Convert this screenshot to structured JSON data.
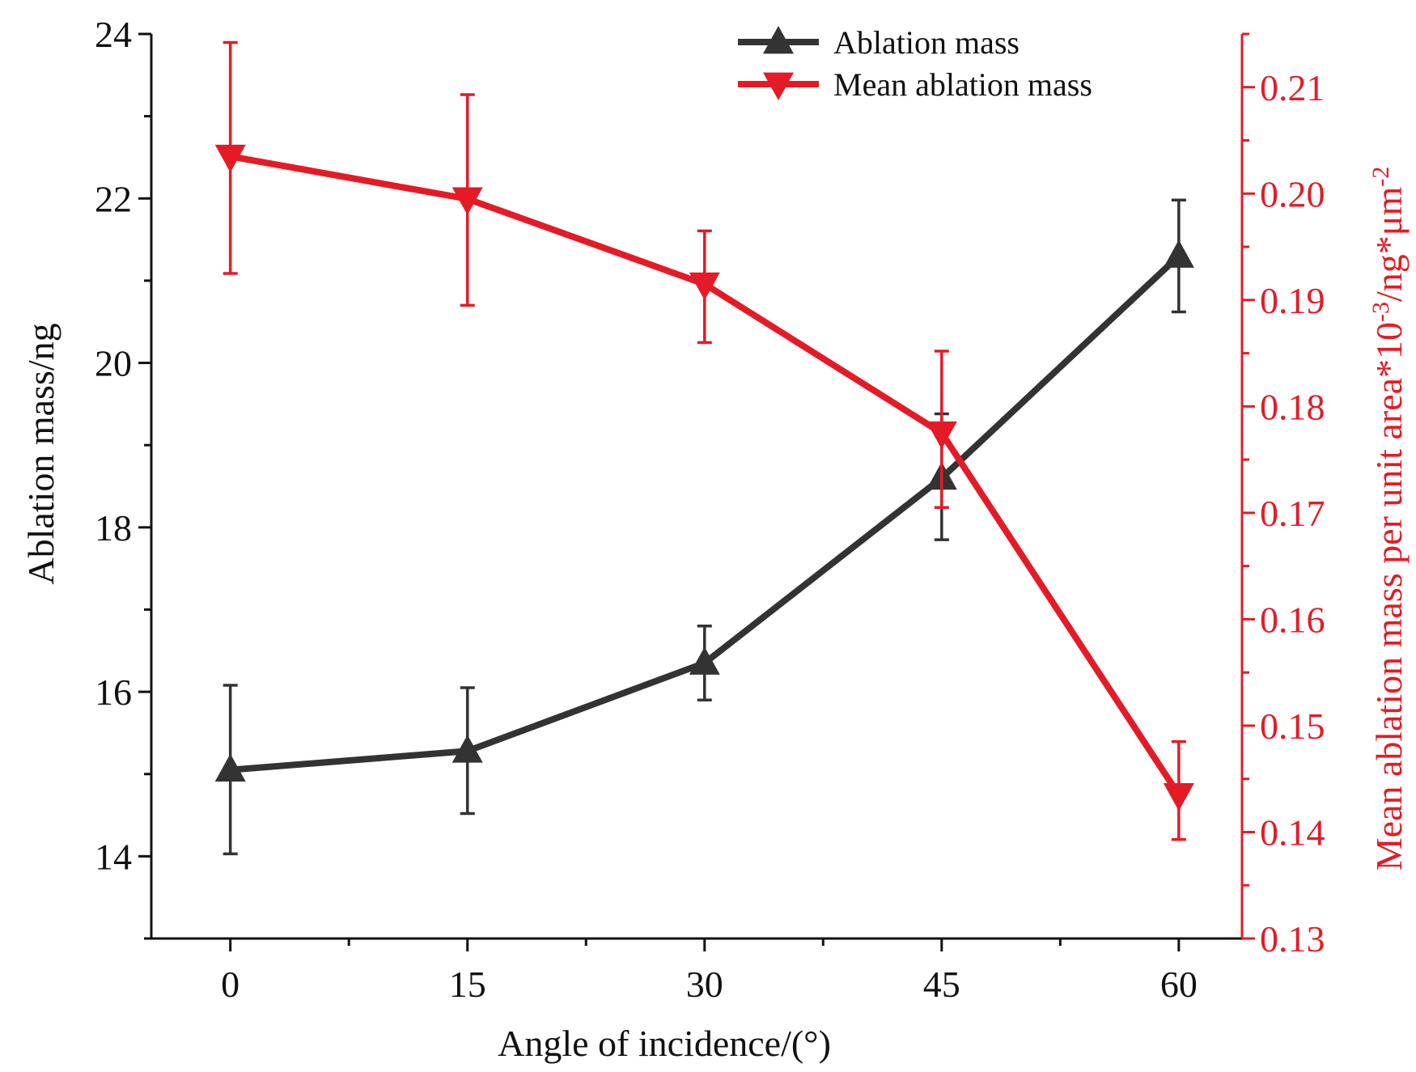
{
  "colors": {
    "series_black": "#333333",
    "series_red": "#e41b26",
    "axis_black": "#111111"
  },
  "chart_data": {
    "type": "line",
    "x": [
      0,
      15,
      30,
      45,
      60
    ],
    "x_tick_labels": [
      "0",
      "15",
      "30",
      "45",
      "60"
    ],
    "xlabel": "Angle of incidence/(°)",
    "xlim": [
      -5,
      64
    ],
    "y_left": {
      "label": "Ablation mass/ng",
      "lim": [
        13,
        24
      ],
      "ticks": [
        14,
        16,
        18,
        20,
        22,
        24
      ],
      "tick_labels": [
        "14",
        "16",
        "18",
        "20",
        "22",
        "24"
      ]
    },
    "y_right": {
      "label_main": "Mean ablation mass per unit area*10",
      "label_sup1": "-3",
      "label_mid": "/ng*μm",
      "label_sup2": "-2",
      "lim": [
        0.13,
        0.215
      ],
      "ticks": [
        0.13,
        0.14,
        0.15,
        0.16,
        0.17,
        0.18,
        0.19,
        0.2,
        0.21
      ],
      "tick_labels": [
        "0.13",
        "0.14",
        "0.15",
        "0.16",
        "0.17",
        "0.18",
        "0.19",
        "0.20",
        "0.21"
      ]
    },
    "series": [
      {
        "name": "Ablation mass",
        "axis": "left",
        "marker": "triangle-up",
        "color": "#333333",
        "values": [
          15.05,
          15.28,
          16.35,
          18.6,
          21.3
        ],
        "err_low": [
          14.03,
          14.52,
          15.9,
          17.85,
          20.62
        ],
        "err_high": [
          16.08,
          16.05,
          16.8,
          19.38,
          21.98
        ]
      },
      {
        "name": "Mean ablation mass",
        "axis": "right",
        "marker": "triangle-down",
        "color": "#e41b26",
        "values": [
          0.2035,
          0.1995,
          0.1915,
          0.1775,
          0.1435
        ],
        "err_low": [
          0.1925,
          0.1895,
          0.186,
          0.1705,
          0.1393
        ],
        "err_high": [
          0.2142,
          0.2093,
          0.1965,
          0.1852,
          0.1485
        ]
      }
    ],
    "legend": {
      "position": "top-right",
      "entries": [
        "Ablation mass",
        "Mean ablation mass"
      ]
    },
    "grid": false
  }
}
